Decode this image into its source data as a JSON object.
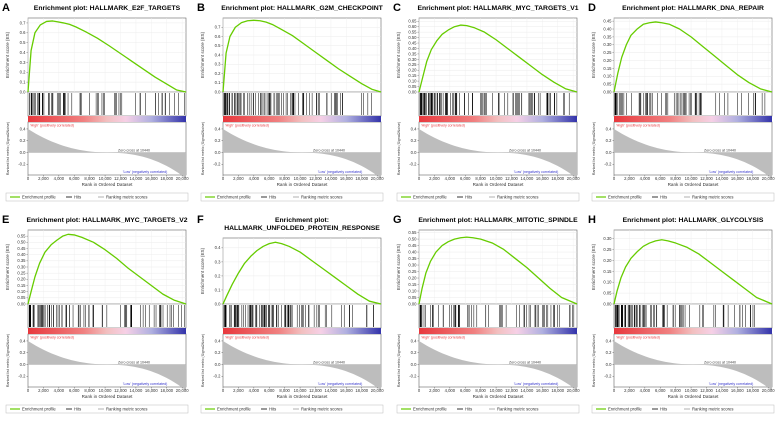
{
  "figure": {
    "shared": {
      "x_label": "Rank in Ordered Dataset",
      "es_label": "Enrichment score (ES)",
      "metric_label": "Ranked list metric (Signal2Noise)",
      "pos_label": "'High' (positively correlated)",
      "neg_label": "'Low' (negatively correlated)",
      "zero_label": "Zero cross at 10440",
      "legend": [
        "Enrichment profile",
        "Hits",
        "Ranking metric scores"
      ],
      "colors": {
        "curve": "#66cc00",
        "hits": "#000000",
        "metric": "#bdbdbd",
        "pos": "#e8383d",
        "neg": "#3333aa",
        "pos_text": "#e8383d",
        "neg_text": "#3333cc"
      }
    }
  },
  "chart_data": [
    {
      "type": "line",
      "letter": "A",
      "title_lines": [
        "Enrichment plot: HALLMARK_E2F_TARGETS"
      ],
      "x": [
        0,
        400,
        900,
        1600,
        2400,
        3200,
        3800,
        4600,
        5400,
        6200,
        7500,
        9000,
        10500,
        12000,
        13500,
        15000,
        16500,
        18000,
        19300,
        20500
      ],
      "values": [
        0,
        0.42,
        0.6,
        0.68,
        0.715,
        0.72,
        0.712,
        0.7,
        0.685,
        0.66,
        0.61,
        0.545,
        0.47,
        0.39,
        0.31,
        0.23,
        0.15,
        0.08,
        0.02,
        0
      ],
      "ylim": [
        0,
        0.75
      ],
      "ytick_values": [
        0,
        0.1,
        0.2,
        0.3,
        0.4,
        0.5,
        0.6,
        0.7
      ],
      "ytick_labels": [
        "0.0",
        "0.1",
        "0.2",
        "0.3",
        "0.4",
        "0.5",
        "0.6",
        "0.7"
      ],
      "xlim": [
        0,
        20500
      ],
      "xtick_values": [
        0,
        2000,
        4000,
        6000,
        8000,
        10000,
        12000,
        14000,
        16000,
        18000,
        20000
      ],
      "xtick_labels": [
        "0",
        "2,000",
        "4,000",
        "6,000",
        "8,000",
        "10,000",
        "12,000",
        "14,000",
        "16,000",
        "18,000",
        "20,000"
      ],
      "metric_ticks": [
        0.4,
        0.2,
        0,
        -0.2,
        -0.4
      ],
      "metric_tick_labels": [
        "0.4",
        "0.2",
        "0.0",
        "-0.2",
        "-0.4"
      ]
    },
    {
      "type": "line",
      "letter": "B",
      "title_lines": [
        "Enrichment plot: HALLMARK_G2M_CHECKPOINT"
      ],
      "x": [
        0,
        400,
        900,
        1600,
        2400,
        3200,
        4000,
        4800,
        5600,
        6400,
        7500,
        9000,
        10500,
        12000,
        13500,
        15000,
        16500,
        18000,
        19300,
        20500
      ],
      "values": [
        0,
        0.42,
        0.6,
        0.7,
        0.75,
        0.77,
        0.775,
        0.77,
        0.755,
        0.73,
        0.68,
        0.61,
        0.52,
        0.43,
        0.34,
        0.25,
        0.17,
        0.09,
        0.03,
        0
      ],
      "ylim": [
        0,
        0.8
      ],
      "ytick_values": [
        0,
        0.1,
        0.2,
        0.3,
        0.4,
        0.5,
        0.6,
        0.7
      ],
      "ytick_labels": [
        "0.0",
        "0.1",
        "0.2",
        "0.3",
        "0.4",
        "0.5",
        "0.6",
        "0.7"
      ],
      "xlim": [
        0,
        20500
      ],
      "xtick_values": [
        0,
        2000,
        4000,
        6000,
        8000,
        10000,
        12000,
        14000,
        16000,
        18000,
        20000
      ],
      "xtick_labels": [
        "0",
        "2,000",
        "4,000",
        "6,000",
        "8,000",
        "10,000",
        "12,000",
        "14,000",
        "16,000",
        "18,000",
        "20,000"
      ],
      "metric_ticks": [
        0.4,
        0.2,
        0,
        -0.2,
        -0.4
      ],
      "metric_tick_labels": [
        "0.4",
        "0.2",
        "0.0",
        "-0.2",
        "-0.4"
      ]
    },
    {
      "type": "line",
      "letter": "C",
      "title_lines": [
        "Enrichment plot: HALLMARK_MYC_TARGETS_V1"
      ],
      "x": [
        0,
        500,
        1000,
        1600,
        2300,
        3000,
        3800,
        4600,
        5400,
        6200,
        7200,
        8500,
        10000,
        11500,
        13000,
        14500,
        16000,
        17500,
        19000,
        20500
      ],
      "values": [
        0,
        0.14,
        0.28,
        0.39,
        0.47,
        0.53,
        0.57,
        0.6,
        0.615,
        0.61,
        0.59,
        0.55,
        0.48,
        0.4,
        0.32,
        0.24,
        0.16,
        0.09,
        0.03,
        0
      ],
      "ylim": [
        0,
        0.68
      ],
      "ytick_values": [
        0,
        0.05,
        0.1,
        0.15,
        0.2,
        0.25,
        0.3,
        0.35,
        0.4,
        0.45,
        0.5,
        0.55,
        0.6,
        0.65
      ],
      "ytick_labels": [
        "0.00",
        "0.05",
        "0.10",
        "0.15",
        "0.20",
        "0.25",
        "0.30",
        "0.35",
        "0.40",
        "0.45",
        "0.50",
        "0.55",
        "0.60",
        "0.65"
      ],
      "xlim": [
        0,
        20500
      ],
      "xtick_values": [
        0,
        2000,
        4000,
        6000,
        8000,
        10000,
        12000,
        14000,
        16000,
        18000,
        20000
      ],
      "xtick_labels": [
        "0",
        "2,000",
        "4,000",
        "6,000",
        "8,000",
        "10,000",
        "12,000",
        "14,000",
        "16,000",
        "18,000",
        "20,000"
      ],
      "metric_ticks": [
        0.4,
        0.2,
        0,
        -0.2,
        -0.4
      ],
      "metric_tick_labels": [
        "0.4",
        "0.2",
        "0.0",
        "-0.2",
        "-0.4"
      ]
    },
    {
      "type": "line",
      "letter": "D",
      "title_lines": [
        "Enrichment plot: HALLMARK_DNA_REPAIR"
      ],
      "x": [
        0,
        500,
        1000,
        1600,
        2200,
        3000,
        3800,
        4600,
        5400,
        6200,
        7200,
        8500,
        10000,
        11500,
        13000,
        14500,
        16000,
        17500,
        19000,
        20500
      ],
      "values": [
        0,
        0.12,
        0.22,
        0.3,
        0.36,
        0.4,
        0.43,
        0.44,
        0.445,
        0.44,
        0.43,
        0.4,
        0.35,
        0.29,
        0.23,
        0.17,
        0.11,
        0.06,
        0.02,
        0
      ],
      "ylim": [
        0,
        0.47
      ],
      "ytick_values": [
        0,
        0.05,
        0.1,
        0.15,
        0.2,
        0.25,
        0.3,
        0.35,
        0.4,
        0.45
      ],
      "ytick_labels": [
        "0.00",
        "0.05",
        "0.10",
        "0.15",
        "0.20",
        "0.25",
        "0.30",
        "0.35",
        "0.40",
        "0.45"
      ],
      "xlim": [
        0,
        20500
      ],
      "xtick_values": [
        0,
        2000,
        4000,
        6000,
        8000,
        10000,
        12000,
        14000,
        16000,
        18000,
        20000
      ],
      "xtick_labels": [
        "0",
        "2,000",
        "4,000",
        "6,000",
        "8,000",
        "10,000",
        "12,000",
        "14,000",
        "16,000",
        "18,000",
        "20,000"
      ],
      "metric_ticks": [
        0.4,
        0.2,
        0,
        -0.2,
        -0.4
      ],
      "metric_tick_labels": [
        "0.4",
        "0.2",
        "0.0",
        "-0.2",
        "-0.4"
      ]
    },
    {
      "type": "line",
      "letter": "E",
      "title_lines": [
        "Enrichment plot: HALLMARK_MYC_TARGETS_V2"
      ],
      "x": [
        0,
        400,
        900,
        1500,
        2200,
        3000,
        3800,
        4500,
        5200,
        6000,
        7000,
        8500,
        10000,
        11500,
        13000,
        14500,
        16000,
        17500,
        19000,
        20500
      ],
      "values": [
        0,
        0.1,
        0.22,
        0.33,
        0.42,
        0.48,
        0.52,
        0.55,
        0.565,
        0.56,
        0.54,
        0.5,
        0.44,
        0.37,
        0.29,
        0.22,
        0.15,
        0.08,
        0.03,
        0
      ],
      "ylim": [
        0,
        0.6
      ],
      "ytick_values": [
        0,
        0.05,
        0.1,
        0.15,
        0.2,
        0.25,
        0.3,
        0.35,
        0.4,
        0.45,
        0.5,
        0.55
      ],
      "ytick_labels": [
        "0.00",
        "0.05",
        "0.10",
        "0.15",
        "0.20",
        "0.25",
        "0.30",
        "0.35",
        "0.40",
        "0.45",
        "0.50",
        "0.55"
      ],
      "xlim": [
        0,
        20500
      ],
      "xtick_values": [
        0,
        2000,
        4000,
        6000,
        8000,
        10000,
        12000,
        14000,
        16000,
        18000,
        20000
      ],
      "xtick_labels": [
        "0",
        "2,000",
        "4,000",
        "6,000",
        "8,000",
        "10,000",
        "12,000",
        "14,000",
        "16,000",
        "18,000",
        "20,000"
      ],
      "metric_ticks": [
        0.4,
        0.2,
        0,
        -0.2,
        -0.4
      ],
      "metric_tick_labels": [
        "0.4",
        "0.2",
        "0.0",
        "-0.2",
        "-0.4"
      ]
    },
    {
      "type": "line",
      "letter": "F",
      "title_lines": [
        "Enrichment plot:",
        "HALLMARK_UNFOLDED_PROTEIN_RESPONSE"
      ],
      "x": [
        0,
        500,
        1200,
        2000,
        2800,
        3600,
        4400,
        5200,
        6000,
        6800,
        7600,
        8600,
        10000,
        11500,
        13000,
        14500,
        16000,
        17500,
        19000,
        20500
      ],
      "values": [
        0,
        0.06,
        0.14,
        0.22,
        0.29,
        0.34,
        0.38,
        0.41,
        0.43,
        0.44,
        0.43,
        0.41,
        0.37,
        0.31,
        0.25,
        0.19,
        0.13,
        0.07,
        0.02,
        0
      ],
      "ylim": [
        0,
        0.47
      ],
      "ytick_values": [
        0,
        0.1,
        0.2,
        0.3,
        0.4
      ],
      "ytick_labels": [
        "0.0",
        "0.1",
        "0.2",
        "0.3",
        "0.4"
      ],
      "xlim": [
        0,
        20500
      ],
      "xtick_values": [
        0,
        2000,
        4000,
        6000,
        8000,
        10000,
        12000,
        14000,
        16000,
        18000,
        20000
      ],
      "xtick_labels": [
        "0",
        "2,000",
        "4,000",
        "6,000",
        "8,000",
        "10,000",
        "12,000",
        "14,000",
        "16,000",
        "18,000",
        "20,000"
      ],
      "metric_ticks": [
        0.4,
        0.2,
        0,
        -0.2,
        -0.4
      ],
      "metric_tick_labels": [
        "0.4",
        "0.2",
        "0.0",
        "-0.2",
        "-0.4"
      ]
    },
    {
      "type": "line",
      "letter": "G",
      "title_lines": [
        "Enrichment plot: HALLMARK_MITOTIC_SPINDLE"
      ],
      "x": [
        0,
        400,
        900,
        1500,
        2200,
        3000,
        3800,
        4600,
        5400,
        6200,
        7000,
        8000,
        9500,
        11000,
        12500,
        14000,
        15500,
        17000,
        18500,
        20500
      ],
      "values": [
        0,
        0.12,
        0.24,
        0.33,
        0.4,
        0.45,
        0.48,
        0.5,
        0.51,
        0.515,
        0.51,
        0.5,
        0.47,
        0.42,
        0.35,
        0.28,
        0.2,
        0.12,
        0.05,
        0
      ],
      "ylim": [
        0,
        0.57
      ],
      "ytick_values": [
        0,
        0.05,
        0.1,
        0.15,
        0.2,
        0.25,
        0.3,
        0.35,
        0.4,
        0.45,
        0.5,
        0.55
      ],
      "ytick_labels": [
        "0.00",
        "0.05",
        "0.10",
        "0.15",
        "0.20",
        "0.25",
        "0.30",
        "0.35",
        "0.40",
        "0.45",
        "0.50",
        "0.55"
      ],
      "xlim": [
        0,
        20500
      ],
      "xtick_values": [
        0,
        2000,
        4000,
        6000,
        8000,
        10000,
        12000,
        14000,
        16000,
        18000,
        20000
      ],
      "xtick_labels": [
        "0",
        "2,000",
        "4,000",
        "6,000",
        "8,000",
        "10,000",
        "12,000",
        "14,000",
        "16,000",
        "18,000",
        "20,000"
      ],
      "metric_ticks": [
        0.4,
        0.2,
        0,
        -0.2,
        -0.4
      ],
      "metric_tick_labels": [
        "0.4",
        "0.2",
        "0.0",
        "-0.2",
        "-0.4"
      ]
    },
    {
      "type": "line",
      "letter": "H",
      "title_lines": [
        "Enrichment plot: HALLMARK_GLYCOLYSIS"
      ],
      "x": [
        0,
        400,
        900,
        1500,
        2200,
        3000,
        3800,
        4600,
        5400,
        6200,
        7000,
        8000,
        9500,
        11000,
        12500,
        14000,
        15500,
        17000,
        18500,
        20500
      ],
      "values": [
        0,
        0.06,
        0.12,
        0.17,
        0.21,
        0.24,
        0.265,
        0.28,
        0.29,
        0.295,
        0.29,
        0.28,
        0.26,
        0.23,
        0.19,
        0.15,
        0.11,
        0.07,
        0.03,
        0
      ],
      "ylim": [
        0,
        0.34
      ],
      "ytick_values": [
        0,
        0.05,
        0.1,
        0.15,
        0.2,
        0.25,
        0.3
      ],
      "ytick_labels": [
        "0.00",
        "0.05",
        "0.10",
        "0.15",
        "0.20",
        "0.25",
        "0.30"
      ],
      "xlim": [
        0,
        20500
      ],
      "xtick_values": [
        0,
        2000,
        4000,
        6000,
        8000,
        10000,
        12000,
        14000,
        16000,
        18000,
        20000
      ],
      "xtick_labels": [
        "0",
        "2,000",
        "4,000",
        "6,000",
        "8,000",
        "10,000",
        "12,000",
        "14,000",
        "16,000",
        "18,000",
        "20,000"
      ],
      "metric_ticks": [
        0.4,
        0.2,
        0,
        -0.2,
        -0.4
      ],
      "metric_tick_labels": [
        "0.4",
        "0.2",
        "0.0",
        "-0.2",
        "-0.4"
      ]
    }
  ]
}
